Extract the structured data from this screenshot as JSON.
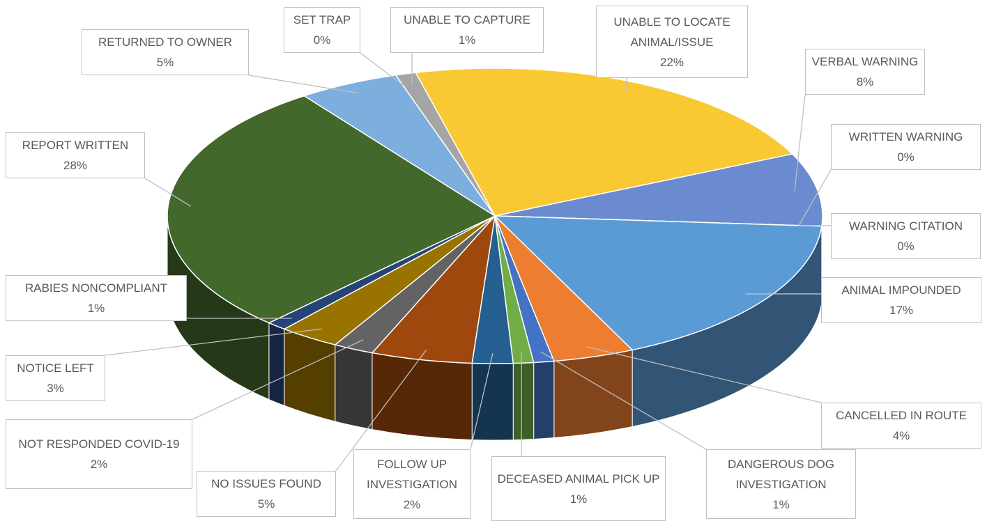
{
  "chart_data": {
    "type": "pie",
    "categories": [
      "UNABLE TO LOCATE ANIMAL/ISSUE",
      "VERBAL WARNING",
      "WRITTEN WARNING",
      "WARNING CITATION",
      "ANIMAL IMPOUNDED",
      "CANCELLED IN ROUTE",
      "DANGEROUS DOG INVESTIGATION",
      "DECEASED ANIMAL PICK UP",
      "FOLLOW UP INVESTIGATION",
      "NO ISSUES FOUND",
      "NOT RESPONDED COVID-19",
      "NOTICE LEFT",
      "RABIES NONCOMPLIANT",
      "REPORT WRITTEN",
      "RETURNED TO OWNER",
      "SET TRAP",
      "UNABLE TO CAPTURE"
    ],
    "values": [
      22,
      8,
      0,
      0,
      17,
      4,
      1,
      1,
      2,
      5,
      2,
      3,
      1,
      28,
      5,
      0,
      1
    ],
    "value_labels": [
      "22%",
      "8%",
      "0%",
      "0%",
      "17%",
      "4%",
      "1%",
      "1%",
      "2%",
      "5%",
      "2%",
      "3%",
      "1%",
      "28%",
      "5%",
      "0%",
      "1%"
    ],
    "colors": [
      "#f9c933",
      "#6a8bcf",
      "#8fb0e0",
      "#5a7fb8",
      "#5b9bd5",
      "#ed7d31",
      "#4472c4",
      "#70ad47",
      "#255e91",
      "#9e480e",
      "#636363",
      "#997300",
      "#264478",
      "#43682b",
      "#7cafdd",
      "#c9c9c9",
      "#a5a5a5"
    ]
  }
}
